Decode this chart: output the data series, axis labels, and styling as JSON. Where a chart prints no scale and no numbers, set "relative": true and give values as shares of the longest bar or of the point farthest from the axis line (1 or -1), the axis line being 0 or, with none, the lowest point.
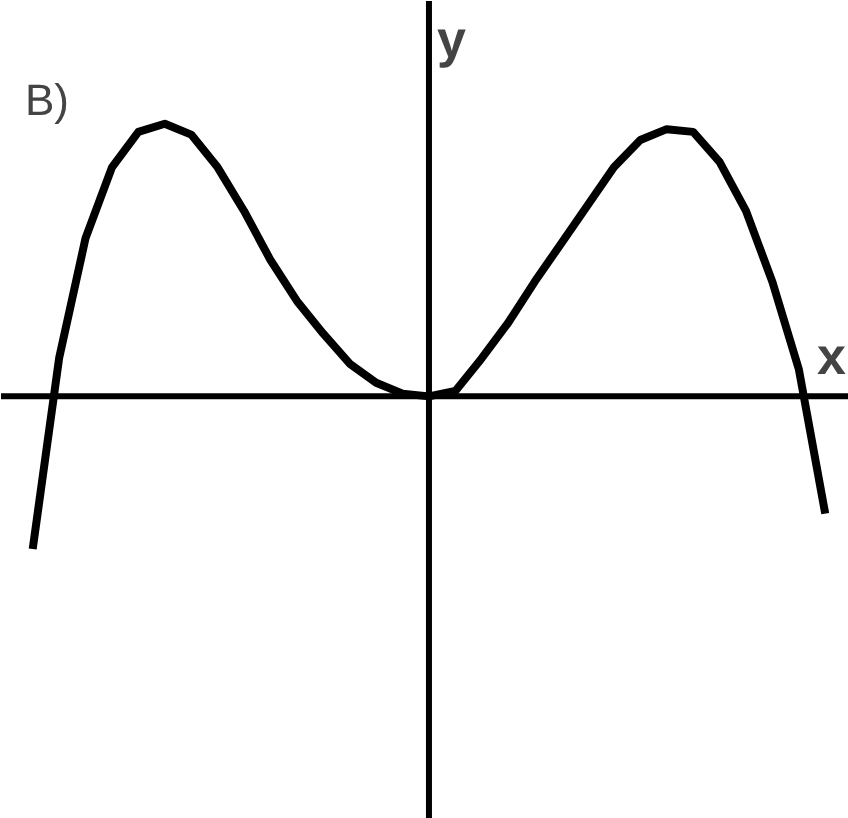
{
  "chart_data": {
    "type": "line",
    "relative": true,
    "title": "B)",
    "xlabel": "x",
    "ylabel": "y",
    "grid": false,
    "marker": "none",
    "line_style": "solid",
    "categories": [
      null,
      null,
      null,
      null,
      null,
      null,
      null,
      null,
      null,
      null,
      null,
      null,
      null,
      null,
      null,
      null,
      null,
      null,
      null,
      null,
      null,
      null,
      null,
      null,
      null,
      null,
      null,
      null,
      null,
      null,
      null
    ],
    "series": [
      {
        "color": "#000000",
        "values": [
          -0.56,
          0.14,
          0.58,
          0.84,
          0.97,
          1.0,
          0.96,
          0.84,
          0.68,
          0.5,
          0.35,
          0.23,
          0.12,
          0.05,
          0.01,
          0,
          0.02,
          0.14,
          0.27,
          0.42,
          0.56,
          0.7,
          0.84,
          0.94,
          0.98,
          0.97,
          0.86,
          0.68,
          0.42,
          0.1,
          -0.43
        ]
      }
    ]
  }
}
